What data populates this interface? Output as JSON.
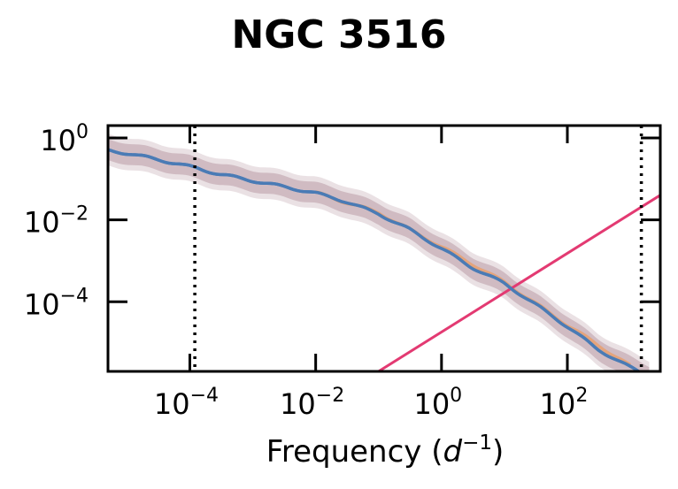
{
  "chart_data": {
    "type": "line",
    "title": "NGC 3516",
    "xlabel": "Frequency",
    "xlabel_unit_base": "d",
    "xlabel_unit_exp": "−1",
    "xscale": "log",
    "yscale": "log",
    "xlim": [
      5e-06,
      3000
    ],
    "ylim": [
      2e-06,
      2
    ],
    "x_ticks": [
      {
        "base": "10",
        "exp": "−4",
        "value": 0.0001
      },
      {
        "base": "10",
        "exp": "−2",
        "value": 0.01
      },
      {
        "base": "10",
        "exp": "0",
        "value": 1
      },
      {
        "base": "10",
        "exp": "2",
        "value": 100
      }
    ],
    "y_ticks": [
      {
        "base": "10",
        "exp": "0",
        "value": 1
      },
      {
        "base": "10",
        "exp": "−2",
        "value": 0.01
      },
      {
        "base": "10",
        "exp": "−4",
        "value": 0.0001
      }
    ],
    "vlines": [
      0.00012,
      1500
    ],
    "series": [
      {
        "role": "psd-median",
        "color": "#4a7bb5",
        "x": [
          5e-06,
          1e-05,
          3e-05,
          0.0001,
          0.0003,
          0.001,
          0.003,
          0.01,
          0.03,
          0.1,
          0.3,
          1,
          3,
          10,
          30,
          100,
          300,
          1000,
          2000
        ],
        "y": [
          0.5,
          0.42,
          0.3,
          0.2,
          0.13,
          0.09,
          0.065,
          0.045,
          0.028,
          0.014,
          0.006,
          0.002,
          0.0007,
          0.00028,
          9e-05,
          2.5e-05,
          7e-06,
          2.5e-06,
          1.5e-06
        ]
      },
      {
        "role": "psd-alt",
        "color": "#e8a070",
        "x": [
          0.01,
          0.1,
          1,
          10,
          100,
          1000
        ],
        "y": [
          0.046,
          0.015,
          0.0022,
          0.0003,
          2.7e-05,
          2.7e-06
        ]
      },
      {
        "role": "noise-line",
        "color": "#e33a72",
        "x": [
          0.1,
          3000
        ],
        "y": [
          2e-06,
          0.04
        ]
      }
    ],
    "band_factor": 1.8,
    "band_color": "#8b5a6a",
    "grid": false,
    "legend": "none"
  }
}
